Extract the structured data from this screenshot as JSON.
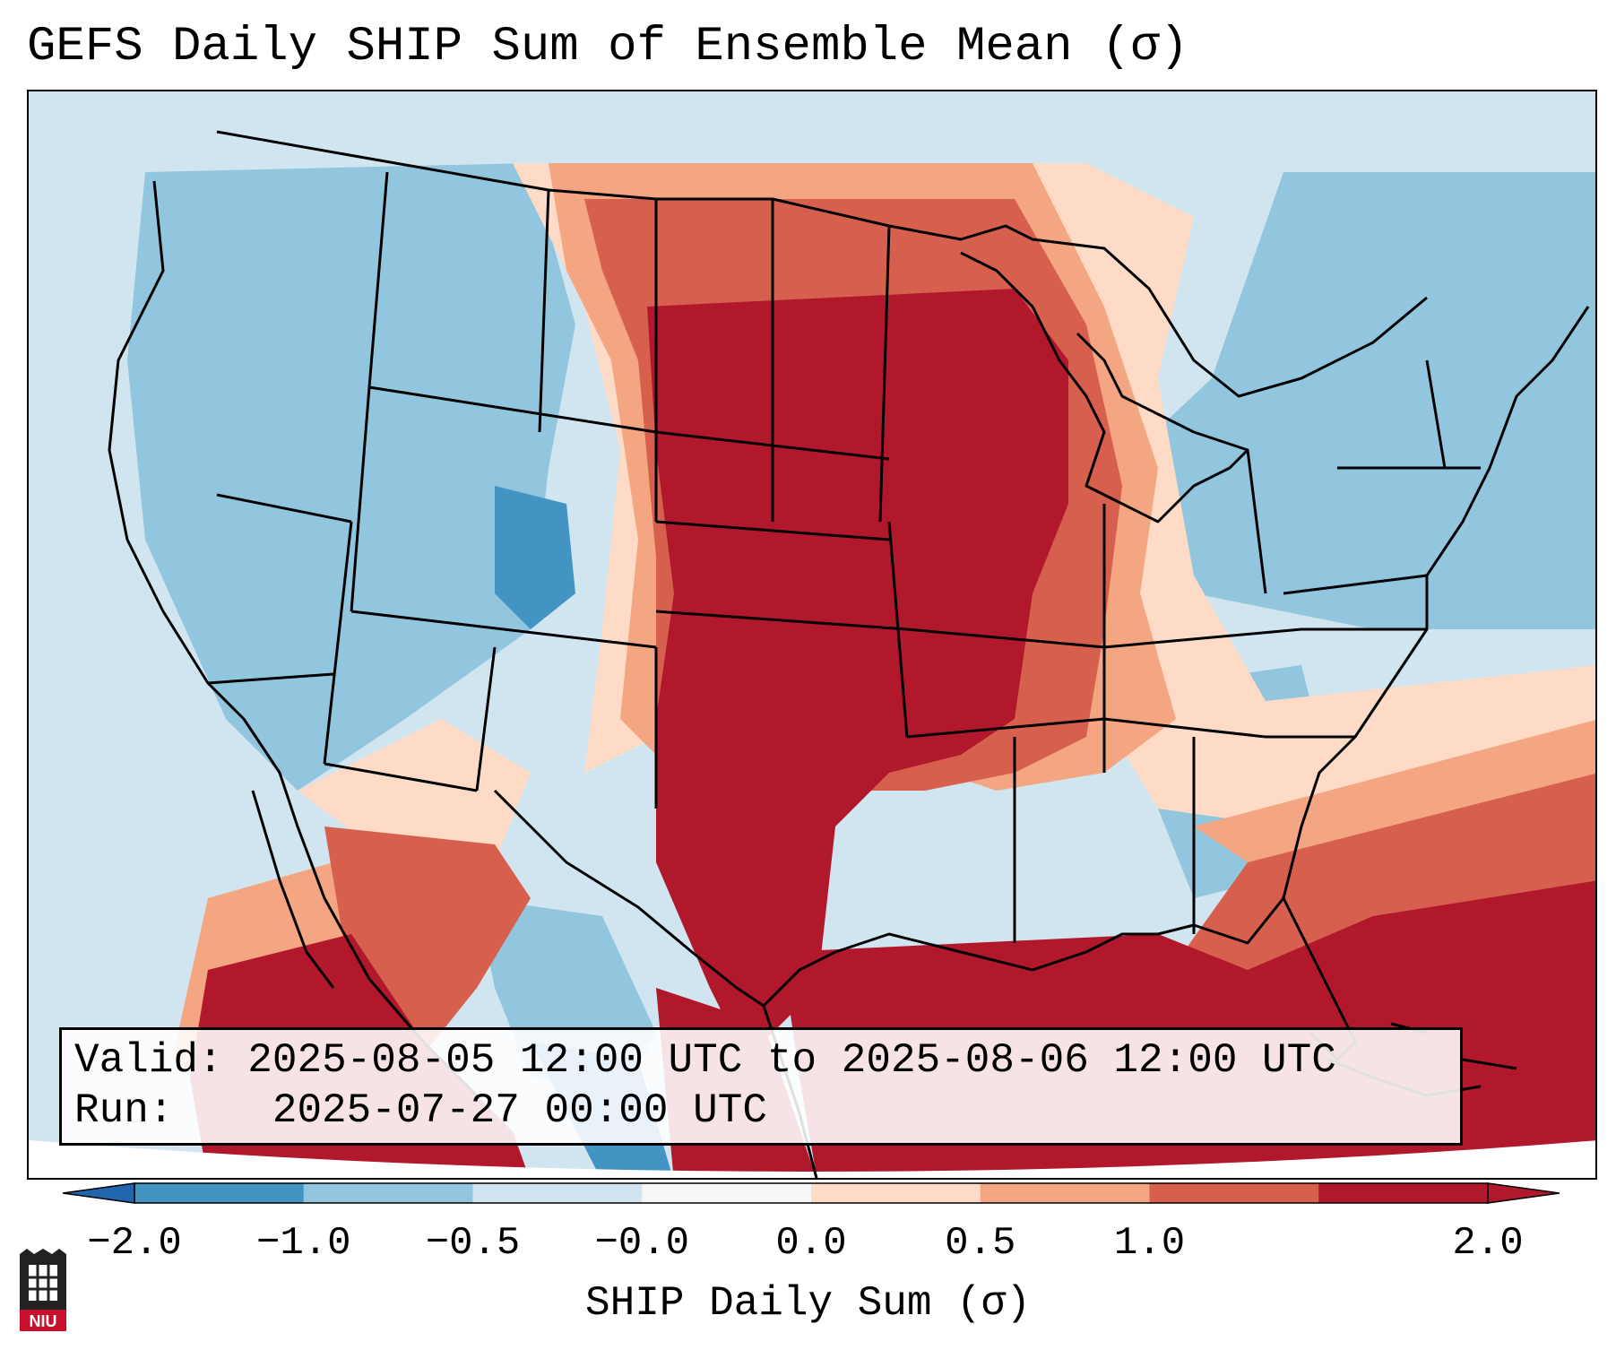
{
  "title": "GEFS Daily SHIP Sum of Ensemble Mean (σ)",
  "info": {
    "valid_label": "Valid:",
    "valid_value": "2025-08-05 12:00 UTC to 2025-08-06 12:00 UTC",
    "run_label": "Run:",
    "run_value": "2025-07-27 00:00 UTC"
  },
  "colorbar": {
    "label": "SHIP Daily Sum (σ)",
    "ticks": [
      "−2.0",
      "−1.0",
      "−0.5",
      "−0.0",
      "0.0",
      "0.5",
      "1.0",
      "2.0"
    ],
    "colors": [
      "#4393c3",
      "#92c5de",
      "#d1e5f0",
      "#f7f7f7",
      "#fddbc7",
      "#f4a582",
      "#d6604d",
      "#b2182b"
    ],
    "extend_low_color": "#2166ac",
    "extend_high_color": "#b2182b"
  },
  "logo": {
    "text": "NIU",
    "color": "#c8102e"
  },
  "map_colors": {
    "background": "#d1e5f0",
    "lightblue": "#92c5de",
    "medblue": "#4393c3",
    "peach": "#fddbc7",
    "salmon": "#f4a582",
    "red": "#d6604d",
    "darkred": "#b2182b"
  }
}
